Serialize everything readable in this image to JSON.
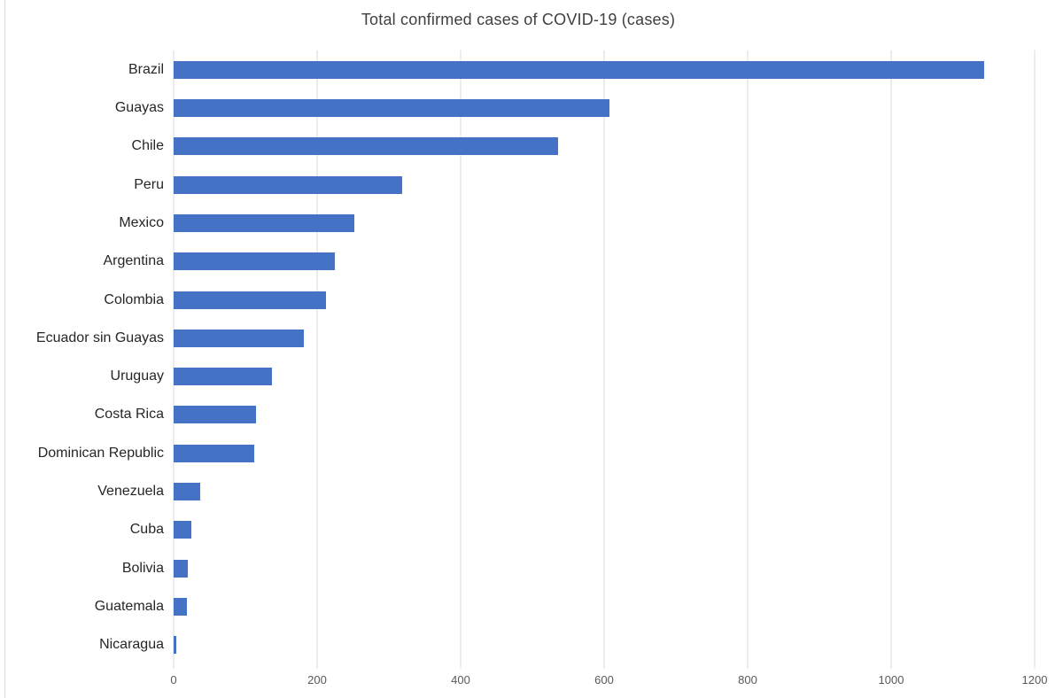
{
  "title": "Total confirmed cases of COVID-19 (cases)",
  "colors": {
    "bar": "#4472C4",
    "gridline": "#D9D9D9",
    "title_text": "#3F3F3F",
    "label_text": "#262626",
    "tick_text": "#595959",
    "background": "#FFFFFF"
  },
  "chart_data": {
    "type": "bar",
    "orientation": "horizontal",
    "title": "Total confirmed cases of COVID-19 (cases)",
    "categories": [
      "Brazil",
      "Guayas",
      "Chile",
      "Peru",
      "Mexico",
      "Argentina",
      "Colombia",
      "Ecuador sin Guayas",
      "Uruguay",
      "Costa Rica",
      "Dominican Republic",
      "Venezuela",
      "Cuba",
      "Bolivia",
      "Guatemala",
      "Nicaragua"
    ],
    "values": [
      1130,
      608,
      536,
      318,
      252,
      225,
      212,
      182,
      137,
      115,
      112,
      37,
      25,
      20,
      18,
      4
    ],
    "xlabel": "",
    "ylabel": "",
    "xlim": [
      0,
      1200
    ],
    "x_ticks": [
      0,
      200,
      400,
      600,
      800,
      1000,
      1200
    ],
    "grid": "vertical-only",
    "legend": "none"
  }
}
